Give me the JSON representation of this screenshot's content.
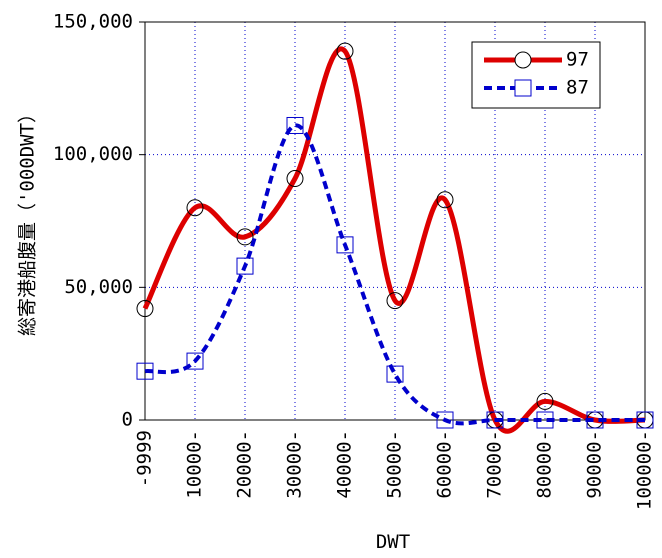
{
  "chart_data": {
    "type": "line",
    "x_label": "DWT",
    "y_label": "総寄港船腹量（'000DWT）",
    "categories": [
      "-9999",
      "10000-",
      "20000-",
      "30000-",
      "40000-",
      "50000-",
      "60000-",
      "70000-",
      "80000-",
      "90000-",
      "100000-"
    ],
    "series": [
      {
        "name": "97",
        "color": "#dd0000",
        "marker": "circle",
        "dash": false,
        "values": [
          42000,
          80000,
          69000,
          91000,
          139000,
          45000,
          83000,
          0,
          7000,
          0,
          0
        ]
      },
      {
        "name": "87",
        "color": "#0000cc",
        "marker": "square",
        "dash": true,
        "values": [
          18400,
          22200,
          58000,
          111000,
          66000,
          17300,
          0,
          0,
          0,
          0,
          0
        ]
      }
    ],
    "ylim": [
      0,
      150000
    ],
    "yticks": [
      0,
      {
        "value": 50000,
        "label": "50,000"
      },
      {
        "value": 100000,
        "label": "100,000"
      },
      {
        "value": 150000,
        "label": "150,000"
      }
    ],
    "grid": true,
    "legend": "top-right"
  }
}
